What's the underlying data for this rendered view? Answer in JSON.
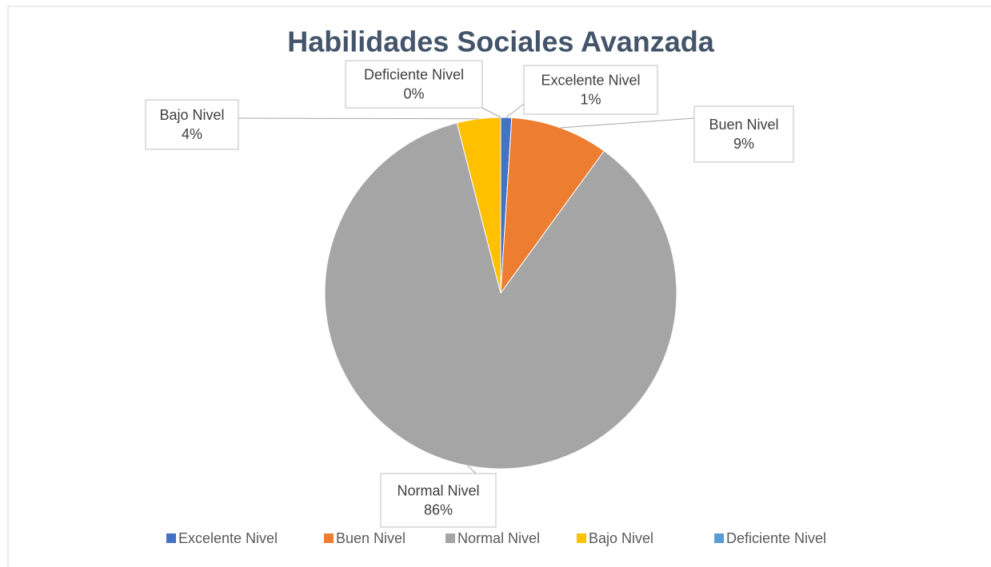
{
  "chart_data": {
    "type": "pie",
    "title": "Habilidades Sociales Avanzada",
    "categories": [
      "Excelente Nivel",
      "Buen Nivel",
      "Normal Nivel",
      "Bajo Nivel",
      "Deficiente Nivel"
    ],
    "values": [
      1,
      9,
      86,
      4,
      0
    ],
    "value_labels": [
      "1%",
      "9%",
      "86%",
      "4%",
      "0%"
    ],
    "colors": [
      "#4472c4",
      "#ed7d31",
      "#a5a5a5",
      "#ffc000",
      "#5b9bd5"
    ],
    "legend": "bottom"
  }
}
